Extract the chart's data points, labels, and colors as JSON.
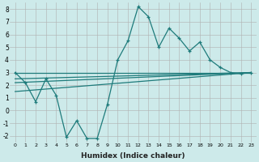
{
  "xlabel": "Humidex (Indice chaleur)",
  "background_color": "#cdeaea",
  "grid_color": "#b0b0b0",
  "line_color": "#1e7b7b",
  "x": [
    0,
    1,
    2,
    3,
    4,
    5,
    6,
    7,
    8,
    9,
    10,
    11,
    12,
    13,
    14,
    15,
    16,
    17,
    18,
    19,
    20,
    21,
    22,
    23
  ],
  "series1": [
    3.0,
    2.2,
    0.7,
    2.5,
    1.2,
    -2.1,
    -0.8,
    -2.2,
    -2.2,
    0.5,
    4.0,
    5.5,
    8.2,
    7.4,
    5.0,
    6.5,
    5.7,
    4.7,
    5.4,
    4.0,
    3.4,
    3.0,
    2.9,
    3.0
  ],
  "line1_start": 3.0,
  "line1_end": 3.0,
  "line2_start": 2.5,
  "line2_end": 3.0,
  "line3_start": 2.2,
  "line3_end": 3.0,
  "line4_start": 1.5,
  "line4_end": 3.0,
  "ylim": [
    -2.5,
    8.5
  ],
  "yticks": [
    -2,
    -1,
    0,
    1,
    2,
    3,
    4,
    5,
    6,
    7,
    8
  ],
  "xlim_left": -0.5,
  "xlim_right": 23.5
}
